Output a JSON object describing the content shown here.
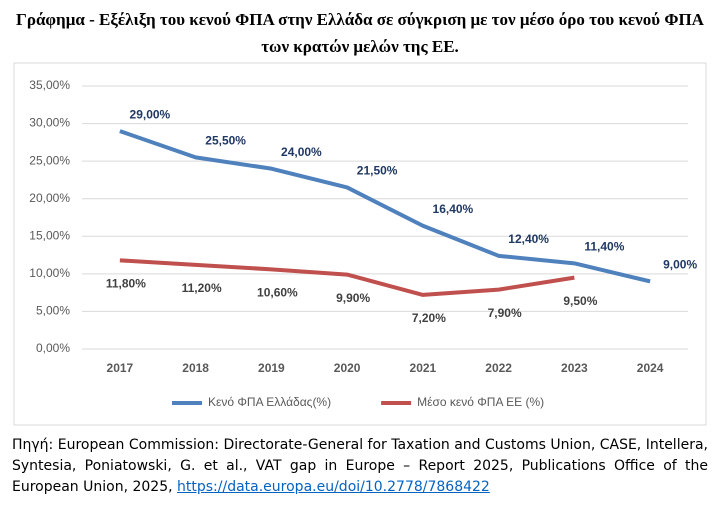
{
  "chart_data": {
    "type": "line",
    "title": "Γράφημα - Εξέλιξη του κενού ΦΠΑ στην Ελλάδα σε σύγκριση με τον μέσο όρο του κενού ΦΠΑ των κρατών μελών της ΕΕ.",
    "categories": [
      "2017",
      "2018",
      "2019",
      "2020",
      "2021",
      "2022",
      "2023",
      "2024"
    ],
    "series": [
      {
        "name": "Κενό ΦΠΑ Ελλάδας(%)",
        "color": "#4f81bd",
        "label_color": "#1f3864",
        "values": [
          29,
          25.5,
          24,
          21.5,
          16.4,
          12.4,
          11.4,
          9
        ],
        "value_labels": [
          "29,00%",
          "25,50%",
          "24,00%",
          "21,50%",
          "16,40%",
          "12,40%",
          "11,40%",
          "9,00%"
        ]
      },
      {
        "name": "Μέσο κενό ΦΠΑ ΕΕ (%)",
        "color": "#c0504d",
        "label_color": "#404040",
        "values": [
          11.8,
          11.2,
          10.6,
          9.9,
          7.2,
          7.9,
          9.5,
          null
        ],
        "value_labels": [
          "11,80%",
          "11,20%",
          "10,60%",
          "9,90%",
          "7,20%",
          "7,90%",
          "9,50%",
          null
        ]
      }
    ],
    "ylim": [
      0,
      35
    ],
    "yticks": [
      {
        "value": 0,
        "label": "0,00%"
      },
      {
        "value": 5,
        "label": "5,00%"
      },
      {
        "value": 10,
        "label": "10,00%"
      },
      {
        "value": 15,
        "label": "15,00%"
      },
      {
        "value": 20,
        "label": "20,00%"
      },
      {
        "value": 25,
        "label": "25,00%"
      },
      {
        "value": 30,
        "label": "30,00%"
      },
      {
        "value": 35,
        "label": "35,00%"
      }
    ],
    "grid": true,
    "legend": "bottom"
  },
  "source": {
    "text": "Πηγή: European Commission: Directorate-General for Taxation and Customs Union, CASE, Intellera, Syntesia, Poniatowski, G. et al., VAT gap in Europe – Report 2025, Publications Office of the European Union, 2025,",
    "link": "https://data.europa.eu/doi/10.2778/7868422"
  }
}
